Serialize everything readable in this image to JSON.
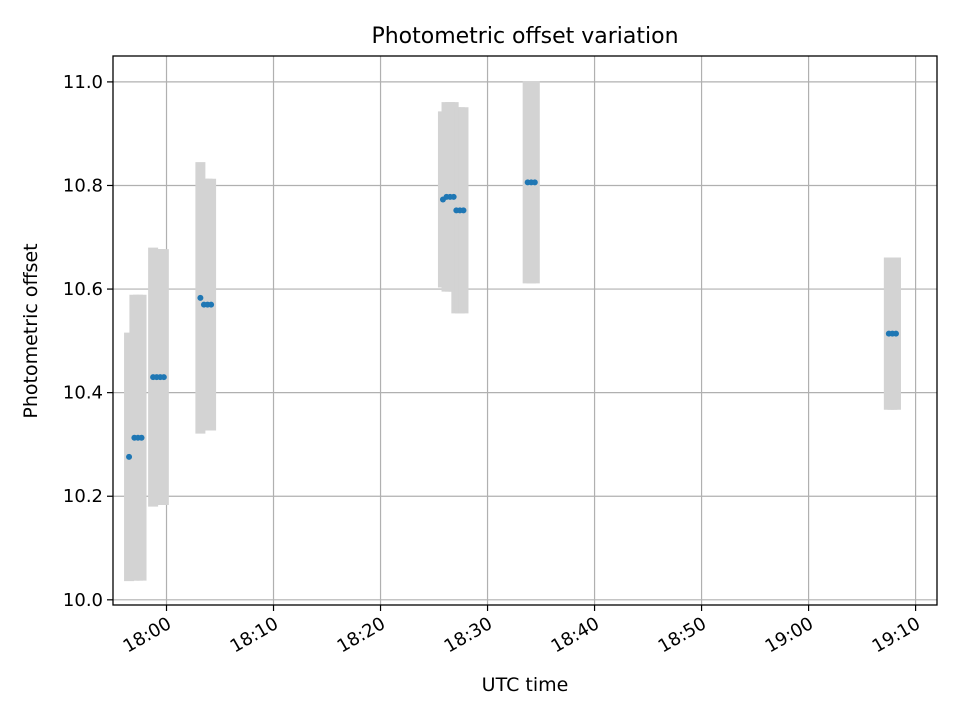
{
  "chart_data": {
    "type": "scatter",
    "title": "Photometric offset variation",
    "xlabel": "UTC time",
    "ylabel": "Photometric offset",
    "grid": true,
    "xlim": [
      "17:55",
      "19:12"
    ],
    "ylim": [
      9.99,
      11.05
    ],
    "x_ticks": [
      "18:00",
      "18:10",
      "18:20",
      "18:30",
      "18:40",
      "18:50",
      "19:00",
      "19:10"
    ],
    "y_ticks": [
      "10.0",
      "10.2",
      "10.4",
      "10.6",
      "10.8",
      "11.0"
    ],
    "colors": {
      "points": "#1f77b4",
      "errorbars": "#d3d3d3",
      "grid": "#b0b0b0"
    },
    "points": [
      {
        "time": "17:56:30",
        "value": 10.276,
        "err": 0.24
      },
      {
        "time": "17:57:00",
        "value": 10.313,
        "err": 0.276
      },
      {
        "time": "17:57:20",
        "value": 10.313,
        "err": 0.276
      },
      {
        "time": "17:57:40",
        "value": 10.313,
        "err": 0.276
      },
      {
        "time": "17:58:45",
        "value": 10.43,
        "err": 0.25
      },
      {
        "time": "17:59:05",
        "value": 10.43,
        "err": 0.247
      },
      {
        "time": "17:59:25",
        "value": 10.43,
        "err": 0.247
      },
      {
        "time": "17:59:45",
        "value": 10.43,
        "err": 0.247
      },
      {
        "time": "18:03:10",
        "value": 10.583,
        "err": 0.262
      },
      {
        "time": "18:03:30",
        "value": 10.57,
        "err": 0.243
      },
      {
        "time": "18:03:50",
        "value": 10.57,
        "err": 0.243
      },
      {
        "time": "18:04:10",
        "value": 10.57,
        "err": 0.243
      },
      {
        "time": "18:25:50",
        "value": 10.773,
        "err": 0.17
      },
      {
        "time": "18:26:10",
        "value": 10.778,
        "err": 0.183
      },
      {
        "time": "18:26:30",
        "value": 10.778,
        "err": 0.183
      },
      {
        "time": "18:26:50",
        "value": 10.778,
        "err": 0.183
      },
      {
        "time": "18:27:05",
        "value": 10.752,
        "err": 0.199
      },
      {
        "time": "18:27:25",
        "value": 10.752,
        "err": 0.199
      },
      {
        "time": "18:27:45",
        "value": 10.752,
        "err": 0.199
      },
      {
        "time": "18:33:45",
        "value": 10.806,
        "err": 0.195
      },
      {
        "time": "18:34:05",
        "value": 10.806,
        "err": 0.195
      },
      {
        "time": "18:34:25",
        "value": 10.806,
        "err": 0.195
      },
      {
        "time": "19:07:30",
        "value": 10.514,
        "err": 0.147
      },
      {
        "time": "19:07:50",
        "value": 10.514,
        "err": 0.147
      },
      {
        "time": "19:08:10",
        "value": 10.514,
        "err": 0.147
      }
    ]
  }
}
